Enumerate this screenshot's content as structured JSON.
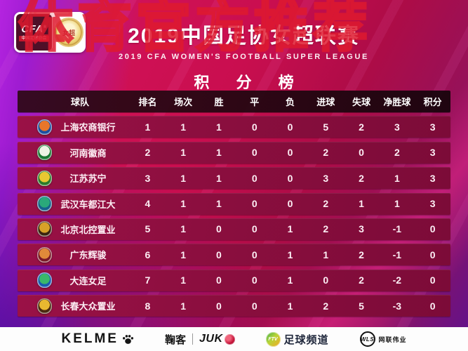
{
  "watermark": "体育官方推荐",
  "header": {
    "logo_cfa": "CFA",
    "logo_reg": "®",
    "logo_cfa_sub": "中国足球协会",
    "emblem_label": "女超",
    "title": "2019中国足协女超联赛",
    "subtitle": "2019 CFA WOMEN'S FOOTBALL SUPER LEAGUE",
    "section_title": "积 分 榜"
  },
  "standings": {
    "columns": [
      "球队",
      "排名",
      "场次",
      "胜",
      "平",
      "负",
      "进球",
      "失球",
      "净胜球",
      "积分"
    ],
    "rows": [
      {
        "team": "上海农商银行",
        "badge": {
          "outer": "#1c4fa0",
          "inner": "#e8762a"
        },
        "values": [
          1,
          1,
          1,
          0,
          0,
          5,
          2,
          3,
          3
        ]
      },
      {
        "team": "河南徽商",
        "badge": {
          "outer": "#1a7a34",
          "inner": "#eef4e6"
        },
        "values": [
          2,
          1,
          1,
          0,
          0,
          2,
          0,
          2,
          3
        ]
      },
      {
        "team": "江苏苏宁",
        "badge": {
          "outer": "#2a7a2a",
          "inner": "#e8c832"
        },
        "values": [
          3,
          1,
          1,
          0,
          0,
          3,
          2,
          1,
          3
        ]
      },
      {
        "team": "武汉车都江大",
        "badge": {
          "outer": "#15628c",
          "inner": "#2aa87a"
        },
        "values": [
          4,
          1,
          1,
          0,
          0,
          2,
          1,
          1,
          3
        ]
      },
      {
        "team": "北京北控置业",
        "badge": {
          "outer": "#3a2410",
          "inner": "#d8a028"
        },
        "values": [
          5,
          1,
          0,
          0,
          1,
          2,
          3,
          -1,
          0
        ]
      },
      {
        "team": "广东辉骏",
        "badge": {
          "outer": "#7a1a28",
          "inner": "#e08a3a"
        },
        "values": [
          6,
          1,
          0,
          0,
          1,
          1,
          2,
          -1,
          0
        ]
      },
      {
        "team": "大连女足",
        "badge": {
          "outer": "#1a5ab0",
          "inner": "#3ab86a"
        },
        "values": [
          7,
          1,
          0,
          0,
          1,
          0,
          2,
          -2,
          0
        ]
      },
      {
        "team": "长春大众置业",
        "badge": {
          "outer": "#4a2a10",
          "inner": "#e8b830"
        },
        "values": [
          8,
          1,
          0,
          0,
          1,
          2,
          5,
          -3,
          0
        ]
      }
    ]
  },
  "chart_data": {
    "type": "table",
    "title": "2019中国足协女超联赛 积分榜",
    "columns": [
      "球队",
      "排名",
      "场次",
      "胜",
      "平",
      "负",
      "进球",
      "失球",
      "净胜球",
      "积分"
    ],
    "rows": [
      [
        "上海农商银行",
        1,
        1,
        1,
        0,
        0,
        5,
        2,
        3,
        3
      ],
      [
        "河南徽商",
        2,
        1,
        1,
        0,
        0,
        2,
        0,
        2,
        3
      ],
      [
        "江苏苏宁",
        3,
        1,
        1,
        0,
        0,
        3,
        2,
        1,
        3
      ],
      [
        "武汉车都江大",
        4,
        1,
        1,
        0,
        0,
        2,
        1,
        1,
        3
      ],
      [
        "北京北控置业",
        5,
        1,
        0,
        0,
        1,
        2,
        3,
        -1,
        0
      ],
      [
        "广东辉骏",
        6,
        1,
        0,
        0,
        1,
        1,
        2,
        -1,
        0
      ],
      [
        "大连女足",
        7,
        1,
        0,
        0,
        1,
        0,
        2,
        -2,
        0
      ],
      [
        "长春大众置业",
        8,
        1,
        0,
        0,
        1,
        2,
        5,
        -3,
        0
      ]
    ]
  },
  "sponsors": {
    "kelme": "KELME",
    "juke_cn": "鞠客",
    "juke_en": "JUK",
    "ftv_abbr": "FTV",
    "ftv_name": "足球频道",
    "wls_abbr": "WLS",
    "wls_name": "网联伟业"
  },
  "colors": {
    "bg_red": "#c90e4f",
    "bg_purple": "#9d1bd0",
    "row_bg": "#8a0e3e",
    "header_row_bg": "#230512",
    "watermark_red": "#de1a2e",
    "footer_bg": "#fdfdfd"
  }
}
